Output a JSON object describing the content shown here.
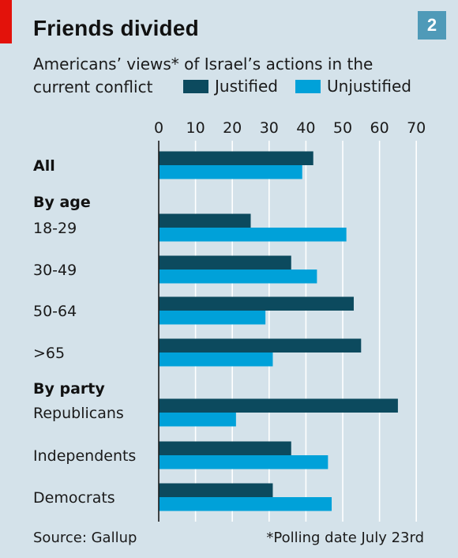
{
  "header": {
    "title": "Friends divided",
    "chart_number": "2",
    "subtitle_line1": "Americans’ views* of Israel’s actions in the",
    "subtitle_line2": "current conflict"
  },
  "colors": {
    "justified": "#0c4a5e",
    "unjustified": "#00a1d9",
    "background": "#d4e2ea",
    "accent_red": "#e3120b"
  },
  "footer": {
    "source": "Source: Gallup",
    "note": "*Polling date July 23rd"
  },
  "chart_data": {
    "type": "bar",
    "orientation": "horizontal",
    "x_ticks": [
      "0",
      "10",
      "20",
      "30",
      "40",
      "50",
      "60",
      "70"
    ],
    "xlim": [
      0,
      70
    ],
    "grid": true,
    "legend": "top",
    "series": [
      {
        "name": "Justified",
        "color": "#0c4a5e"
      },
      {
        "name": "Unjustified",
        "color": "#00a1d9"
      }
    ],
    "rows": [
      {
        "kind": "item",
        "label": "All",
        "bold": true,
        "values": [
          42,
          39
        ]
      },
      {
        "kind": "group",
        "label": "By age"
      },
      {
        "kind": "item",
        "label": "18-29",
        "values": [
          25,
          51
        ]
      },
      {
        "kind": "item",
        "label": "30-49",
        "values": [
          36,
          43
        ]
      },
      {
        "kind": "item",
        "label": "50-64",
        "values": [
          53,
          29
        ]
      },
      {
        "kind": "item",
        "label": ">65",
        "values": [
          55,
          31
        ]
      },
      {
        "kind": "group",
        "label": "By party"
      },
      {
        "kind": "item",
        "label": "Republicans",
        "values": [
          65,
          21
        ]
      },
      {
        "kind": "item",
        "label": "Independents",
        "values": [
          36,
          46
        ]
      },
      {
        "kind": "item",
        "label": "Democrats",
        "values": [
          31,
          47
        ]
      }
    ]
  }
}
